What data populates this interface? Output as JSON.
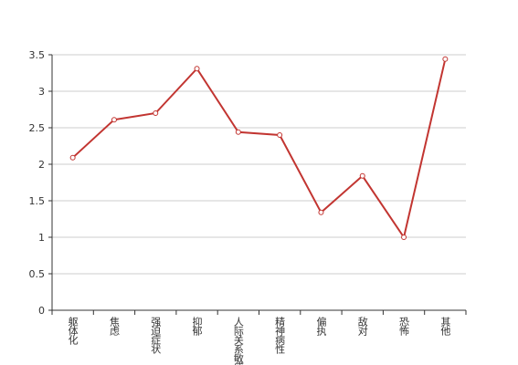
{
  "chart_data": {
    "type": "line",
    "categories": [
      "躯体化",
      "焦虑",
      "强迫症状",
      "抑郁",
      "人际关系敏感",
      "精神病性",
      "偏执",
      "敌对",
      "恐怖",
      "其他"
    ],
    "series": [
      {
        "color": "#c23531",
        "values": [
          2.09,
          2.61,
          2.7,
          3.31,
          2.44,
          2.4,
          1.34,
          1.84,
          1.0,
          3.44
        ]
      }
    ],
    "ylim": [
      0,
      3.5
    ],
    "yticks": [
      0,
      0.5,
      1,
      1.5,
      2,
      2.5,
      3,
      3.5
    ],
    "grid": true
  }
}
